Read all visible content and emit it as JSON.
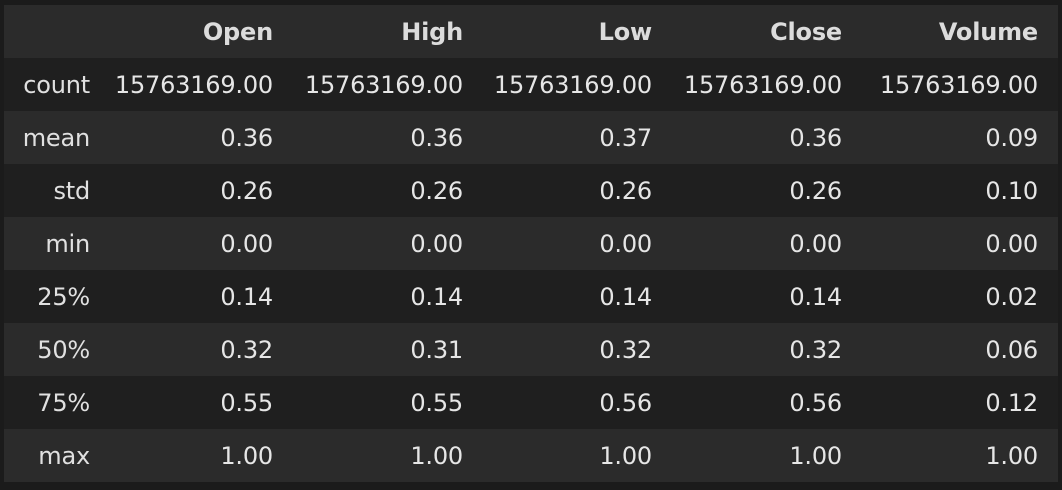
{
  "table": {
    "index_header": "",
    "columns": [
      "Open",
      "High",
      "Low",
      "Close",
      "Volume"
    ],
    "rows": [
      {
        "index": "count",
        "values": [
          "15763169.00",
          "15763169.00",
          "15763169.00",
          "15763169.00",
          "15763169.00"
        ]
      },
      {
        "index": "mean",
        "values": [
          "0.36",
          "0.36",
          "0.37",
          "0.36",
          "0.09"
        ]
      },
      {
        "index": "std",
        "values": [
          "0.26",
          "0.26",
          "0.26",
          "0.26",
          "0.10"
        ]
      },
      {
        "index": "min",
        "values": [
          "0.00",
          "0.00",
          "0.00",
          "0.00",
          "0.00"
        ]
      },
      {
        "index": "25%",
        "values": [
          "0.14",
          "0.14",
          "0.14",
          "0.14",
          "0.02"
        ]
      },
      {
        "index": "50%",
        "values": [
          "0.32",
          "0.31",
          "0.32",
          "0.32",
          "0.06"
        ]
      },
      {
        "index": "75%",
        "values": [
          "0.55",
          "0.55",
          "0.56",
          "0.56",
          "0.12"
        ]
      },
      {
        "index": "max",
        "values": [
          "1.00",
          "1.00",
          "1.00",
          "1.00",
          "1.00"
        ]
      }
    ]
  },
  "colors": {
    "page_background": "#1b1b1b",
    "header_background": "#2b2b2b",
    "row_even_background": "#2b2b2b",
    "row_odd_background": "#1f1f1f",
    "text": "#e6e6e6"
  }
}
